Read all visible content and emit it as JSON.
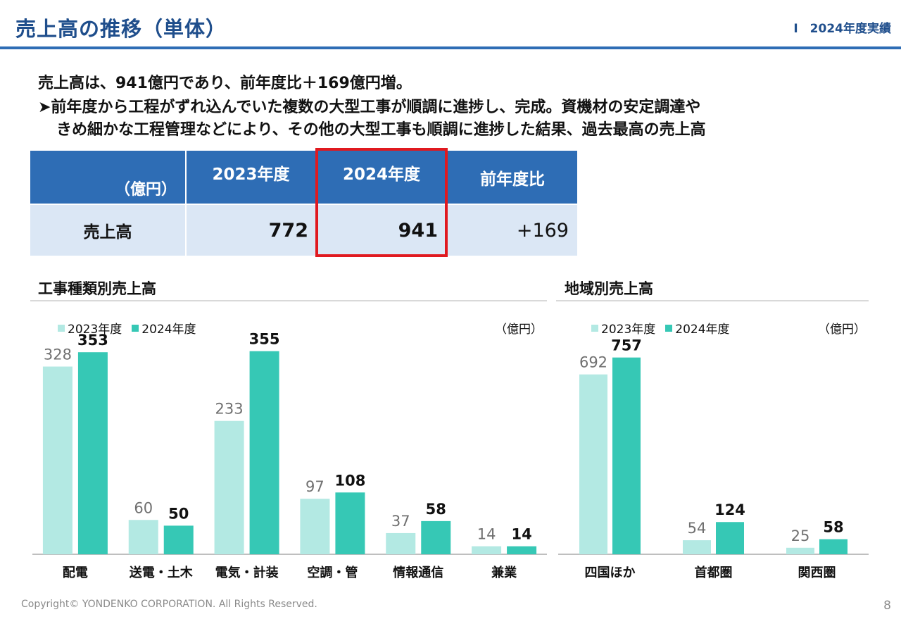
{
  "header": {
    "title": "売上高の推移（単体）",
    "section": "Ⅰ　2024年度実績"
  },
  "summary": {
    "line1": "売上高は、941億円であり、前年度比＋169億円増。",
    "line2": "➤前年度から工程がずれ込んでいた複数の大型工事が順調に進捗し、完成。資機材の安定調達や",
    "line3": "きめ細かな工程管理などにより、その他の大型工事も順調に進捗した結果、過去最高の売上高"
  },
  "table": {
    "unit_label": "（億円）",
    "col_2023": "2023年度",
    "col_2024": "2024年度",
    "col_diff": "前年度比",
    "row_label": "売上高",
    "val_2023": "772",
    "val_2024": "941",
    "val_diff": "+169"
  },
  "colors": {
    "series_2023": "#b3e9e3",
    "series_2024": "#36c8b5",
    "label_2023": "#707070",
    "label_2024": "#111111",
    "highlight": "#e0191f",
    "brand": "#2e6db5"
  },
  "chart_data": [
    {
      "type": "bar",
      "title": "工事種類別売上高",
      "unit": "（億円）",
      "categories": [
        "配電",
        "送電・土木",
        "電気・計装",
        "空調・管",
        "情報通信",
        "兼業"
      ],
      "series": [
        {
          "name": "2023年度",
          "values": [
            328,
            60,
            233,
            97,
            37,
            14
          ]
        },
        {
          "name": "2024年度",
          "values": [
            353,
            50,
            355,
            108,
            58,
            14
          ]
        }
      ],
      "ylim": [
        0,
        400
      ],
      "grid": false,
      "legend": "top-left"
    },
    {
      "type": "bar",
      "title": "地域別売上高",
      "unit": "（億円）",
      "categories": [
        "四国ほか",
        "首都圏",
        "関西圏"
      ],
      "series": [
        {
          "name": "2023年度",
          "values": [
            692,
            54,
            25
          ]
        },
        {
          "name": "2024年度",
          "values": [
            757,
            124,
            58
          ]
        }
      ],
      "ylim": [
        0,
        840
      ],
      "grid": false,
      "legend": "top-left"
    }
  ],
  "footer": {
    "copyright": "Copyright© YONDENKO CORPORATION. All Rights Reserved.",
    "page": "8"
  }
}
